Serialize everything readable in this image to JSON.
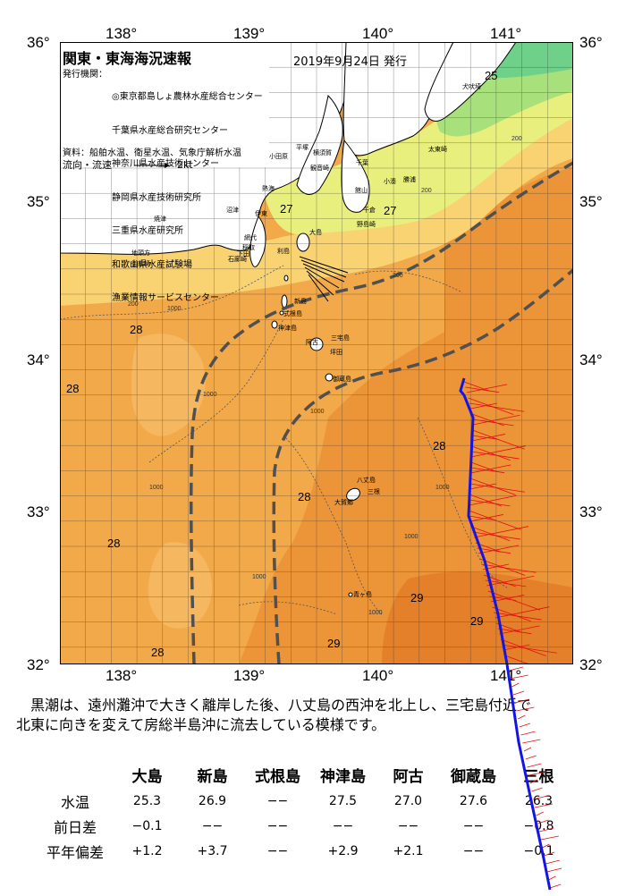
{
  "header": {
    "title": "関東・東海海況速報",
    "date": "2019年9月24日 発行",
    "info_label": "発行機関：",
    "institutions": [
      "◎東京都島しょ農林水産総合センター",
      "千葉県水産総合研究センター",
      "神奈川県水産技術センター",
      "静岡県水産技術研究所",
      "三重県水産研究所",
      "和歌山県水産試験場",
      "漁業情報サービスセンター"
    ],
    "sources": "資料：船舶水温、衛星水温、気象庁解析水温",
    "flow_legend": "流向・流速",
    "flow_unit": "2kt"
  },
  "axes": {
    "lon_labels": [
      "138°",
      "139°",
      "140°",
      "141°"
    ],
    "lat_labels": [
      "36°",
      "35°",
      "34°",
      "33°",
      "32°"
    ]
  },
  "map": {
    "places": [
      "大島",
      "新島",
      "式根島",
      "神津島",
      "三宅島",
      "御蔵島",
      "八丈島",
      "青ヶ島",
      "利島",
      "阿古",
      "坪田",
      "三根",
      "大賀郷",
      "平塚",
      "横須賀",
      "千葉",
      "館山",
      "小田原",
      "熱海",
      "伊東",
      "沼津",
      "網代",
      "稲取",
      "石廊崎",
      "御前崎",
      "地頭方",
      "焼津",
      "下田",
      "勝浦",
      "太東崎",
      "犬吠埼",
      "野島崎",
      "小湊",
      "千倉",
      "観音崎"
    ],
    "temperature_labels": [
      "25",
      "27",
      "27",
      "28",
      "28",
      "28",
      "28",
      "28",
      "28",
      "29",
      "29",
      "29"
    ],
    "depth_labels": [
      "200",
      "1000",
      "200",
      "1000",
      "1000",
      "1000",
      "1000",
      "1000",
      "1000",
      "1000",
      "200",
      "200"
    ]
  },
  "summary": [
    "黒潮は、遠州灘沖で大きく離岸した後、八丈島の西沖を北上し、三宅島付近で",
    "北東に向きを変えて房総半島沖に流去している模様です。"
  ],
  "table": {
    "columns": [
      "大島",
      "新島",
      "式根島",
      "神津島",
      "阿古",
      "御蔵島",
      "三根"
    ],
    "rows": [
      {
        "label": "水温",
        "values": [
          "25.3",
          "26.9",
          "−−",
          "27.5",
          "27.0",
          "27.6",
          "26.3"
        ]
      },
      {
        "label": "前日差",
        "values": [
          "−0.1",
          "−−",
          "−−",
          "−−",
          "−−",
          "−−",
          "−0.8"
        ]
      },
      {
        "label": "平年偏差",
        "values": [
          "+1.2",
          "+3.7",
          "−−",
          "+2.9",
          "+2.1",
          "−−",
          "−0.1"
        ]
      }
    ]
  },
  "colors": {
    "land": "#ffffff",
    "sea_25": "#8fe07a",
    "sea_26": "#d8f078",
    "sea_27": "#f9d272",
    "sea_28": "#f2a94a",
    "sea_29": "#e8862e",
    "kuroshio_axis": "#505050",
    "ship_track": "#1414e6",
    "current_vectors": "#e01010"
  }
}
